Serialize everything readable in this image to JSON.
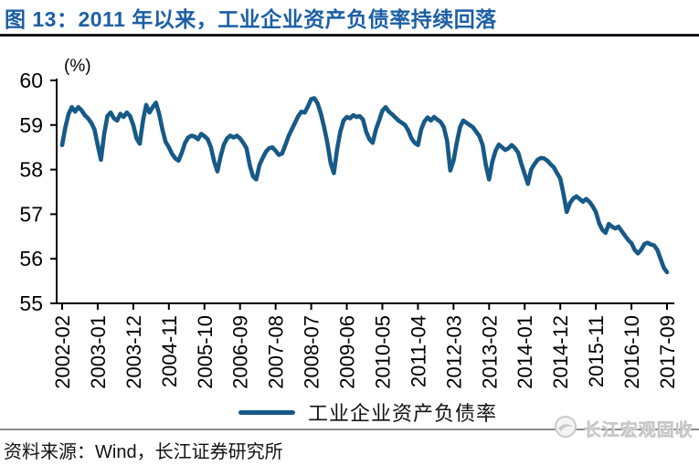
{
  "header": {
    "title": "图 13：2011 年以来，工业企业资产负债率持续回落"
  },
  "colors": {
    "title_blue": "#1C5FA5",
    "line_blue": "#175987",
    "axis_black": "#000000",
    "watermark_gray": "#C9C9C9"
  },
  "chart_data": {
    "type": "line",
    "title": "图 13：2011 年以来，工业企业资产负债率持续回落",
    "unit_label": "(%)",
    "xlabel": "",
    "ylabel": "(%)",
    "ylim": [
      55,
      60
    ],
    "y_ticks": [
      60,
      59,
      58,
      57,
      56,
      55
    ],
    "grid": false,
    "legend_position": "bottom-center",
    "x_tick_every": 11,
    "x_tick_labels": [
      "2002-02",
      "2003-01",
      "2003-12",
      "2004-11",
      "2005-10",
      "2006-09",
      "2007-08",
      "2008-07",
      "2009-06",
      "2010-05",
      "2011-04",
      "2012-03",
      "2013-02",
      "2014-01",
      "2014-12",
      "2015-11",
      "2016-10",
      "2017-09"
    ],
    "series": [
      {
        "name": "工业企业资产负债率",
        "color": "#175987",
        "start": "2002-02",
        "end": "2017-09",
        "frequency": "monthly",
        "values": [
          58.55,
          58.95,
          59.25,
          59.4,
          59.3,
          59.4,
          59.33,
          59.22,
          59.15,
          59.05,
          58.9,
          58.55,
          58.22,
          58.8,
          59.2,
          59.28,
          59.15,
          59.1,
          59.25,
          59.18,
          59.28,
          59.2,
          59.0,
          58.7,
          58.58,
          59.1,
          59.45,
          59.28,
          59.4,
          59.5,
          59.25,
          58.9,
          58.62,
          58.5,
          58.35,
          58.25,
          58.2,
          58.38,
          58.6,
          58.72,
          58.76,
          58.74,
          58.68,
          58.8,
          58.75,
          58.68,
          58.5,
          58.18,
          57.96,
          58.3,
          58.56,
          58.7,
          58.76,
          58.72,
          58.76,
          58.7,
          58.6,
          58.48,
          58.1,
          57.85,
          57.78,
          58.1,
          58.26,
          58.4,
          58.48,
          58.5,
          58.42,
          58.33,
          58.36,
          58.55,
          58.75,
          58.9,
          59.05,
          59.2,
          59.3,
          59.28,
          59.42,
          59.58,
          59.6,
          59.48,
          59.25,
          58.95,
          58.6,
          58.15,
          57.92,
          58.45,
          58.85,
          59.1,
          59.18,
          59.15,
          59.22,
          59.18,
          59.2,
          59.12,
          58.85,
          58.68,
          58.6,
          58.9,
          59.1,
          59.32,
          59.4,
          59.3,
          59.24,
          59.17,
          59.1,
          59.05,
          59.0,
          58.88,
          58.7,
          58.6,
          58.55,
          58.9,
          59.08,
          59.17,
          59.1,
          59.18,
          59.12,
          59.07,
          58.95,
          58.65,
          57.98,
          58.2,
          58.6,
          58.95,
          59.1,
          59.05,
          59.0,
          58.95,
          58.85,
          58.75,
          58.55,
          58.1,
          57.78,
          58.18,
          58.42,
          58.56,
          58.5,
          58.44,
          58.48,
          58.55,
          58.48,
          58.38,
          58.12,
          57.9,
          57.68,
          58.0,
          58.12,
          58.22,
          58.26,
          58.25,
          58.2,
          58.12,
          58.05,
          57.92,
          57.8,
          57.45,
          57.05,
          57.25,
          57.35,
          57.4,
          57.34,
          57.28,
          57.34,
          57.28,
          57.18,
          57.05,
          56.8,
          56.65,
          56.58,
          56.78,
          56.72,
          56.68,
          56.72,
          56.62,
          56.52,
          56.42,
          56.35,
          56.2,
          56.12,
          56.2,
          56.33,
          56.36,
          56.32,
          56.3,
          56.2,
          56.0,
          55.8,
          55.7
        ]
      }
    ]
  },
  "legend": {
    "label": "工业企业资产负债率"
  },
  "footer": {
    "source": "资料来源：Wind，长江证券研究所",
    "watermark": "长江宏观固收"
  }
}
